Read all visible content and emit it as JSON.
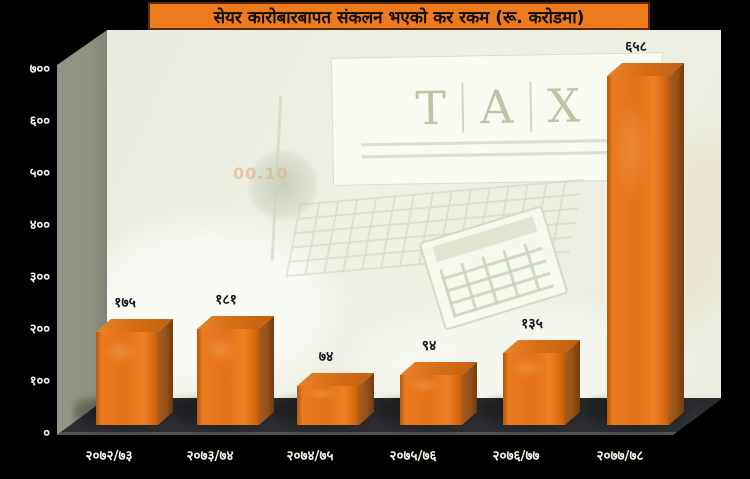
{
  "title": "सेयर कारोबारबापत संकलन भएको कर रकम (रू. करोडमा)",
  "backdrop": {
    "screen_letters": [
      "T",
      "A",
      "X"
    ],
    "faint_text": "00.10"
  },
  "colors": {
    "page_bg": "#000000",
    "title_bg": "#ed7a1c",
    "title_border": "#5f2a02",
    "bar_front": "#e2711b",
    "bar_side": "#94511a",
    "bar_top": "#d66f17",
    "back_wall": "#eaecdf",
    "left_wall": "#8e9181",
    "floor": "#2d2f32",
    "axis_text": "#f4f4ea",
    "value_text": "#181824"
  },
  "chart_data": {
    "type": "bar",
    "title": "सेयर कारोबारबापत संकलन भएको कर रकम (रू. करोडमा)",
    "categories": [
      "२०७२/७३",
      "२०७३/७४",
      "२०७४/७५",
      "२०७५/७६",
      "२०७६/७७",
      "२०७७/७८"
    ],
    "categories_reading": [
      "2072/73",
      "2073/74",
      "2074/75",
      "2075/76",
      "2076/77",
      "2077/78"
    ],
    "values": [
      175,
      181,
      74,
      94,
      135,
      658
    ],
    "value_labels": [
      "१७५",
      "१८१",
      "७४",
      "९४",
      "१३५",
      "६५८"
    ],
    "ylabel": "",
    "xlabel": "",
    "ylim": [
      0,
      700
    ],
    "yticks": [
      0,
      100,
      200,
      300,
      400,
      500,
      600,
      700
    ],
    "ytick_labels": [
      "०",
      "१००",
      "२००",
      "३००",
      "४००",
      "५००",
      "६००",
      "७००"
    ],
    "grid": false,
    "legend": "none",
    "style": "3d-column"
  }
}
